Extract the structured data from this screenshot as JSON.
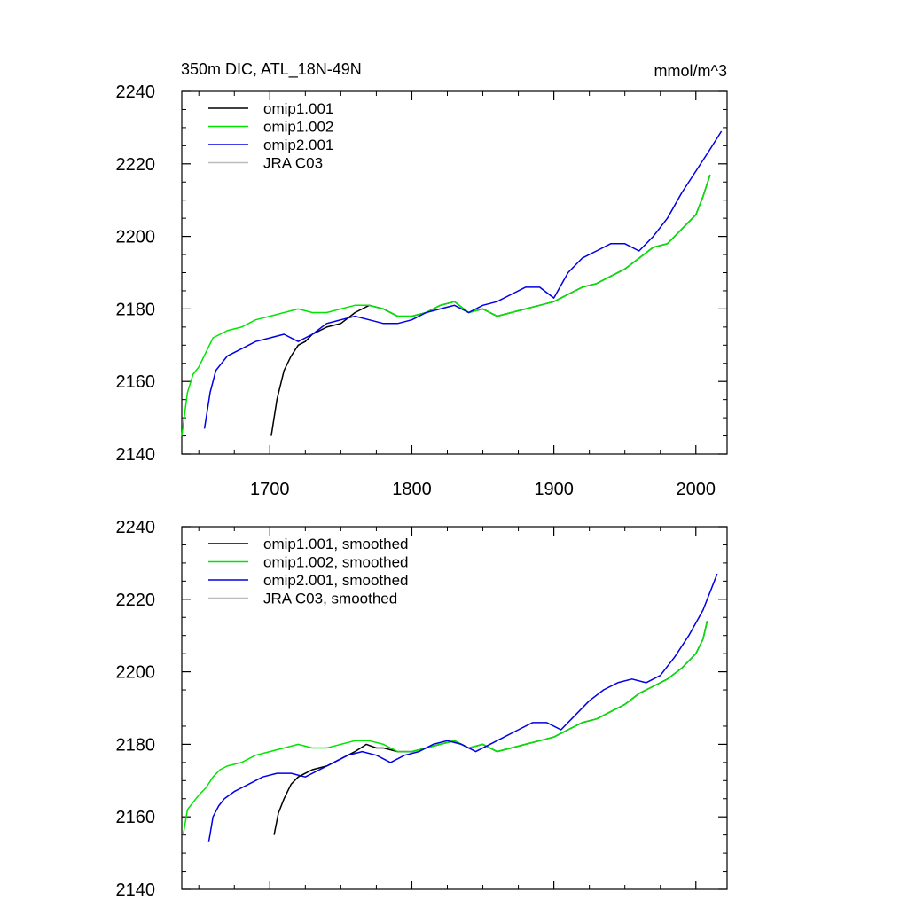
{
  "figure": {
    "title": "350m DIC, ATL_18N-49N",
    "units": "mmol/m^3"
  },
  "chart_data": [
    {
      "type": "line",
      "title": "350m DIC, ATL_18N-49N",
      "units": "mmol/m^3",
      "xlim": [
        1638,
        2022
      ],
      "ylim": [
        2140,
        2240
      ],
      "yticks": [
        2140,
        2160,
        2180,
        2200,
        2220,
        2240
      ],
      "xticks": [
        1700,
        1800,
        1900,
        2000
      ],
      "xtick_labels": [
        "1700",
        "1800",
        "1900",
        "2000"
      ],
      "legend_position": "top-left",
      "legend": [
        "omip1.001",
        "omip1.002",
        "omip2.001",
        "JRA C03"
      ],
      "series": [
        {
          "name": "omip1.001",
          "color": "#000000",
          "x": [
            1701,
            1705,
            1710,
            1715,
            1720,
            1725,
            1730,
            1740,
            1750,
            1760,
            1770,
            1780,
            1790,
            1800,
            1810,
            1820,
            1830,
            1840,
            1850,
            1860,
            1870,
            1880,
            1890,
            1900,
            1910,
            1920,
            1930,
            1940,
            1950,
            1960,
            1970,
            1980,
            1990,
            2000,
            2005,
            2010
          ],
          "y": [
            2145,
            2155,
            2163,
            2167,
            2170,
            2171,
            2173,
            2175,
            2176,
            2179,
            2181,
            2180,
            2178,
            2178,
            2179,
            2181,
            2182,
            2179,
            2180,
            2178,
            2179,
            2180,
            2181,
            2182,
            2184,
            2186,
            2187,
            2189,
            2191,
            2194,
            2197,
            2198,
            2202,
            2206,
            2211,
            2217
          ]
        },
        {
          "name": "omip1.002",
          "color": "#00e600",
          "x": [
            1638,
            1642,
            1646,
            1650,
            1655,
            1660,
            1665,
            1670,
            1680,
            1690,
            1700,
            1710,
            1720,
            1730,
            1740,
            1750,
            1760,
            1770,
            1780,
            1790,
            1800,
            1810,
            1820,
            1830,
            1840,
            1850,
            1860,
            1870,
            1880,
            1890,
            1900,
            1910,
            1920,
            1930,
            1940,
            1950,
            1960,
            1970,
            1980,
            1990,
            2000,
            2005,
            2010
          ],
          "y": [
            2145,
            2157,
            2162,
            2164,
            2168,
            2172,
            2173,
            2174,
            2175,
            2177,
            2178,
            2179,
            2180,
            2179,
            2179,
            2180,
            2181,
            2181,
            2180,
            2178,
            2178,
            2179,
            2181,
            2182,
            2179,
            2180,
            2178,
            2179,
            2180,
            2181,
            2182,
            2184,
            2186,
            2187,
            2189,
            2191,
            2194,
            2197,
            2198,
            2202,
            2206,
            2211,
            2217
          ]
        },
        {
          "name": "omip2.001",
          "color": "#0000e6",
          "x": [
            1654,
            1658,
            1662,
            1666,
            1670,
            1680,
            1690,
            1700,
            1710,
            1720,
            1730,
            1740,
            1750,
            1760,
            1770,
            1780,
            1790,
            1800,
            1810,
            1820,
            1830,
            1840,
            1850,
            1860,
            1870,
            1880,
            1890,
            1900,
            1910,
            1920,
            1930,
            1940,
            1950,
            1960,
            1970,
            1980,
            1990,
            2000,
            2010,
            2018
          ],
          "y": [
            2147,
            2157,
            2163,
            2165,
            2167,
            2169,
            2171,
            2172,
            2173,
            2171,
            2173,
            2176,
            2177,
            2178,
            2177,
            2176,
            2176,
            2177,
            2179,
            2180,
            2181,
            2179,
            2181,
            2182,
            2184,
            2186,
            2186,
            2183,
            2190,
            2194,
            2196,
            2198,
            2198,
            2196,
            2200,
            2205,
            2212,
            2218,
            2224,
            2229
          ]
        },
        {
          "name": "JRA C03",
          "color": "#bbbbbb",
          "x": [],
          "y": []
        }
      ]
    },
    {
      "type": "line",
      "xlim": [
        1638,
        2022
      ],
      "ylim": [
        2140,
        2240
      ],
      "yticks": [
        2140,
        2160,
        2180,
        2200,
        2220,
        2240
      ],
      "xticks": [
        1700,
        1800,
        1900,
        2000
      ],
      "legend_position": "top-left",
      "legend": [
        "omip1.001, smoothed",
        "omip1.002, smoothed",
        "omip2.001, smoothed",
        "JRA C03, smoothed"
      ],
      "series": [
        {
          "name": "omip1.001, smoothed",
          "color": "#000000",
          "x": [
            1703,
            1706,
            1710,
            1715,
            1720,
            1725,
            1730,
            1740,
            1750,
            1760,
            1768,
            1775,
            1780,
            1790,
            1800,
            1810,
            1820,
            1830,
            1840,
            1850,
            1860,
            1870,
            1880,
            1890,
            1900,
            1910,
            1920,
            1930,
            1940,
            1950,
            1960,
            1970,
            1980,
            1990,
            2000,
            2005,
            2008
          ],
          "y": [
            2155,
            2161,
            2165,
            2169,
            2171,
            2172,
            2173,
            2174,
            2176,
            2178,
            2180,
            2179,
            2179,
            2178,
            2178,
            2179,
            2180,
            2181,
            2179,
            2180,
            2178,
            2179,
            2180,
            2181,
            2182,
            2184,
            2186,
            2187,
            2189,
            2191,
            2194,
            2196,
            2198,
            2201,
            2205,
            2209,
            2214
          ]
        },
        {
          "name": "omip1.002, smoothed",
          "color": "#00e600",
          "x": [
            1639,
            1642,
            1646,
            1650,
            1655,
            1660,
            1665,
            1670,
            1680,
            1690,
            1700,
            1710,
            1720,
            1730,
            1740,
            1750,
            1760,
            1770,
            1780,
            1790,
            1800,
            1810,
            1820,
            1830,
            1840,
            1850,
            1860,
            1870,
            1880,
            1890,
            1900,
            1910,
            1920,
            1930,
            1940,
            1950,
            1960,
            1970,
            1980,
            1990,
            2000,
            2005,
            2008
          ],
          "y": [
            2155,
            2162,
            2164,
            2166,
            2168,
            2171,
            2173,
            2174,
            2175,
            2177,
            2178,
            2179,
            2180,
            2179,
            2179,
            2180,
            2181,
            2181,
            2180,
            2178,
            2178,
            2179,
            2180,
            2181,
            2179,
            2180,
            2178,
            2179,
            2180,
            2181,
            2182,
            2184,
            2186,
            2187,
            2189,
            2191,
            2194,
            2196,
            2198,
            2201,
            2205,
            2209,
            2214
          ]
        },
        {
          "name": "omip2.001, smoothed",
          "color": "#0000e6",
          "x": [
            1657,
            1660,
            1664,
            1668,
            1675,
            1685,
            1695,
            1705,
            1715,
            1725,
            1735,
            1745,
            1755,
            1765,
            1775,
            1785,
            1795,
            1805,
            1815,
            1825,
            1835,
            1845,
            1855,
            1865,
            1875,
            1885,
            1895,
            1905,
            1915,
            1925,
            1935,
            1945,
            1955,
            1965,
            1975,
            1985,
            1995,
            2005,
            2015
          ],
          "y": [
            2153,
            2160,
            2163,
            2165,
            2167,
            2169,
            2171,
            2172,
            2172,
            2171,
            2173,
            2175,
            2177,
            2178,
            2177,
            2175,
            2177,
            2178,
            2180,
            2181,
            2180,
            2178,
            2180,
            2182,
            2184,
            2186,
            2186,
            2184,
            2188,
            2192,
            2195,
            2197,
            2198,
            2197,
            2199,
            2204,
            2210,
            2217,
            2227
          ]
        },
        {
          "name": "JRA C03, smoothed",
          "color": "#bbbbbb",
          "x": [],
          "y": []
        }
      ]
    }
  ]
}
